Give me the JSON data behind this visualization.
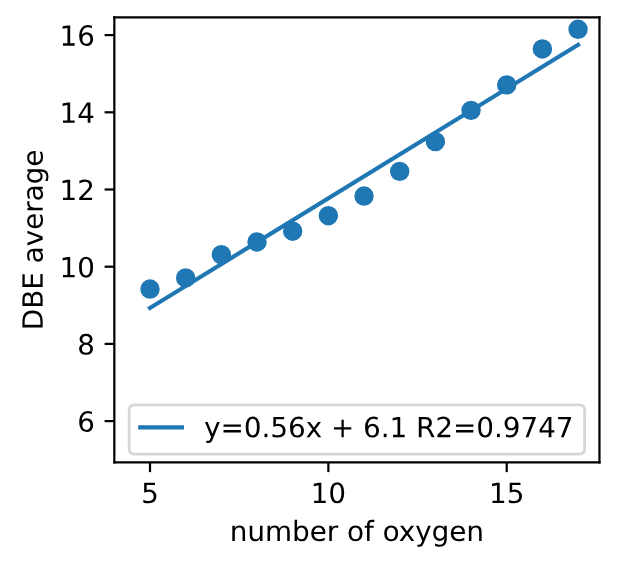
{
  "chart_data": {
    "type": "scatter",
    "xlabel": "number of oxygen",
    "ylabel": "DBE average",
    "xlim": [
      4.0,
      17.6
    ],
    "ylim": [
      4.93,
      16.46
    ],
    "xticks": [
      5,
      10,
      15
    ],
    "yticks": [
      6,
      8,
      10,
      12,
      14,
      16
    ],
    "legend": "bottom",
    "grid": false,
    "series": [
      {
        "marker": "circle",
        "color": "#1f77b4",
        "x": [
          5,
          6,
          7,
          8,
          9,
          10,
          11,
          12,
          13,
          14,
          15,
          16,
          17
        ],
        "values": [
          9.42,
          9.71,
          10.31,
          10.64,
          10.92,
          11.32,
          11.83,
          12.47,
          13.24,
          14.05,
          14.71,
          15.64,
          16.15
        ]
      },
      {
        "type": "line",
        "marker": "none",
        "name": "y=0.56x + 6.1 R2=0.9747",
        "color": "#1f77b4",
        "x": [
          5,
          17
        ],
        "values": [
          8.93,
          15.75
        ]
      }
    ]
  }
}
